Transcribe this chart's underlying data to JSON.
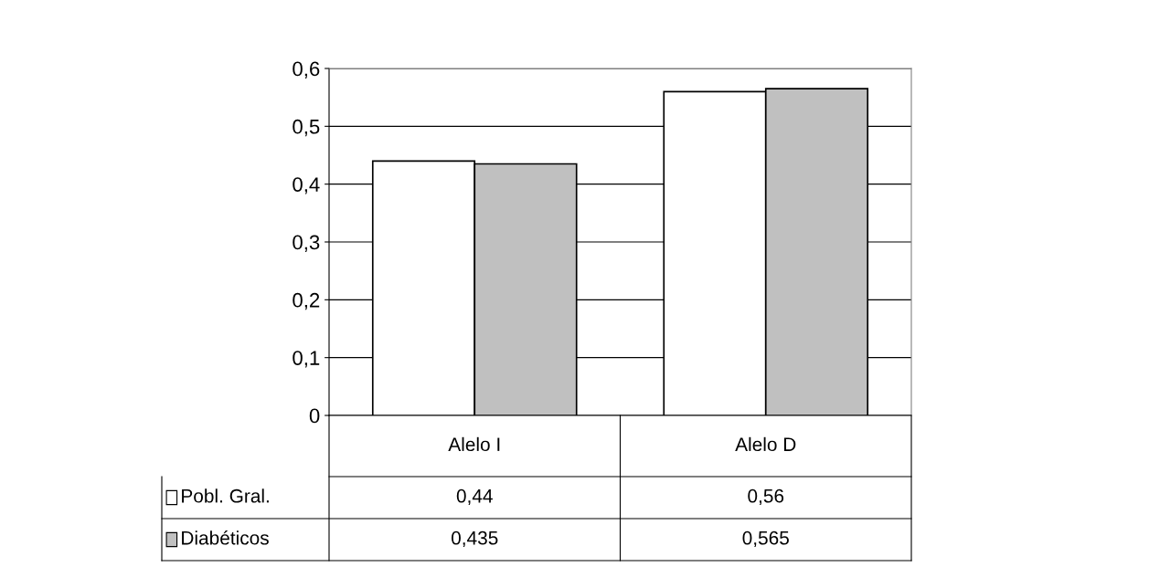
{
  "chart_data": {
    "type": "bar",
    "categories": [
      "Alelo I",
      "Alelo D"
    ],
    "series": [
      {
        "name": "Pobl. Gral.",
        "color": "#ffffff",
        "values": [
          0.44,
          0.56
        ],
        "value_labels": [
          "0,44",
          "0,56"
        ]
      },
      {
        "name": "Diabéticos",
        "color": "#c0c0c0",
        "values": [
          0.435,
          0.565
        ],
        "value_labels": [
          "0,435",
          "0,565"
        ]
      }
    ],
    "ylim": [
      0,
      0.6
    ],
    "yticks": [
      0,
      {
        "value": 0.1,
        "label": "0,1"
      },
      {
        "value": 0.2,
        "label": "0,2"
      },
      {
        "value": 0.3,
        "label": "0,3"
      },
      {
        "value": 0.4,
        "label": "0,4"
      },
      {
        "value": 0.5,
        "label": "0,5"
      },
      {
        "value": 0.6,
        "label": "0,6"
      }
    ],
    "grid": "y",
    "legend": "bottom"
  }
}
